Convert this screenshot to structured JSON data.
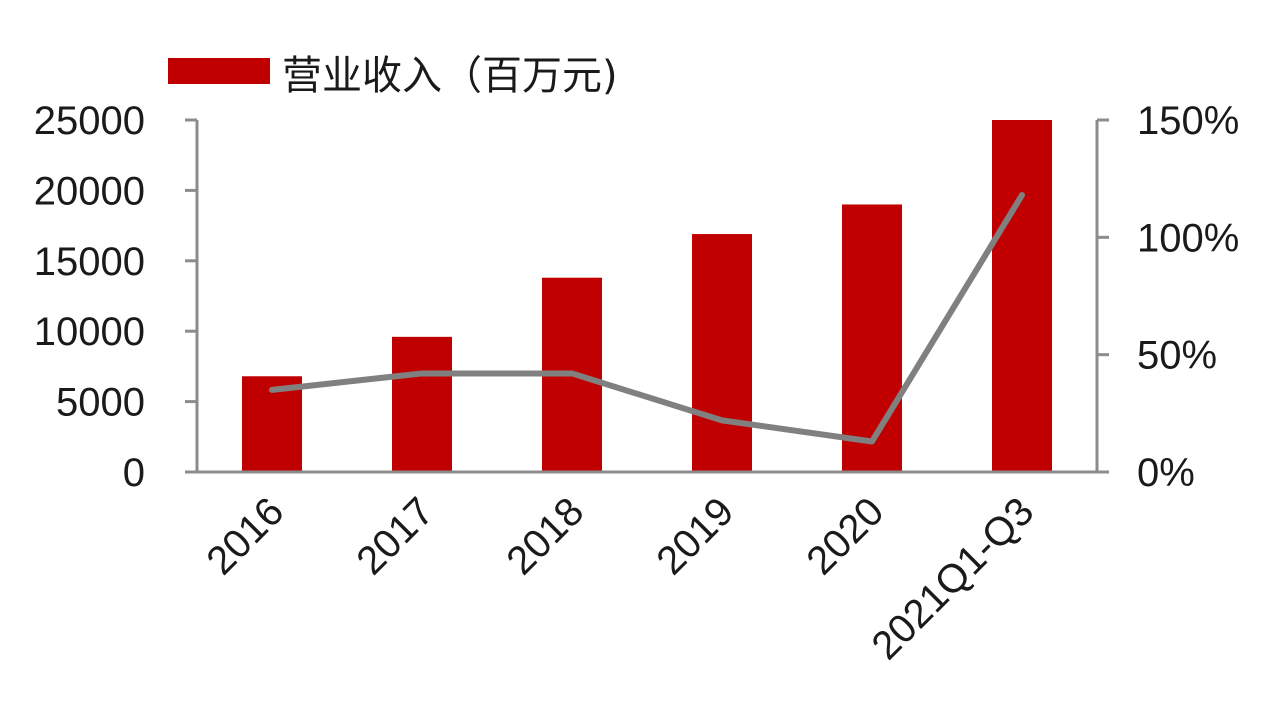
{
  "chart_data": {
    "type": "bar",
    "categories": [
      "2016",
      "2017",
      "2018",
      "2019",
      "2020",
      "2021Q1-Q3"
    ],
    "series": [
      {
        "name": "营业收入（百万元)",
        "type": "bar",
        "axis": "left",
        "color": "#c00000",
        "values": [
          6800,
          9600,
          13800,
          16900,
          19000,
          25000
        ]
      },
      {
        "type": "line",
        "axis": "right",
        "color": "#808080",
        "values": [
          35,
          42,
          42,
          22,
          13,
          118
        ]
      }
    ],
    "y_left": {
      "ylim": [
        0,
        25000
      ],
      "ticks": [
        0,
        5000,
        10000,
        15000,
        20000,
        25000
      ]
    },
    "y_right": {
      "ylim": [
        0,
        150
      ],
      "ticks": [
        0,
        50,
        100,
        150
      ],
      "tick_suffix": "%"
    },
    "legend": {
      "position": "top-left"
    },
    "grid": false
  }
}
